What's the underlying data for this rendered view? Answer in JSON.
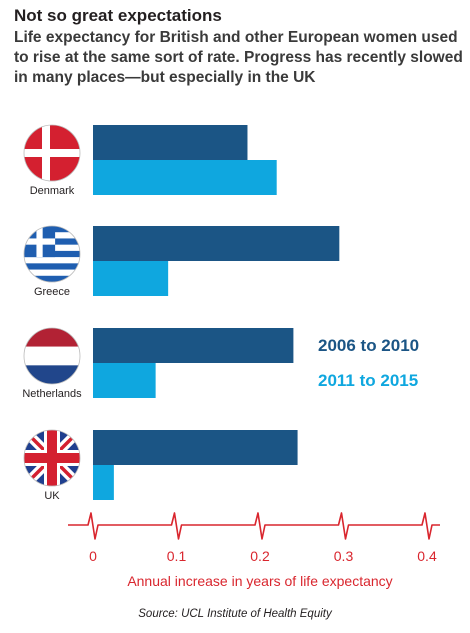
{
  "title": "Not so great expectations",
  "subtitle": "Life expectancy for British and other European women used to rise at the same sort of rate. Progress has recently slowed in many places—but especially in the UK",
  "source": "Source: UCL Institute of Health Equity",
  "chart_data": {
    "type": "bar",
    "orientation": "horizontal",
    "categories": [
      "Denmark",
      "Greece",
      "Netherlands",
      "UK"
    ],
    "series": [
      {
        "name": "2006 to 2010",
        "color": "#1b5585",
        "values": [
          0.185,
          0.295,
          0.24,
          0.245
        ]
      },
      {
        "name": "2011 to 2015",
        "color": "#0fa7df",
        "values": [
          0.22,
          0.09,
          0.075,
          0.025
        ]
      }
    ],
    "xlabel": "Annual increase in years of life expectancy",
    "xlim": [
      0,
      0.4
    ],
    "xticks": [
      "0",
      "0.1",
      "0.2",
      "0.3",
      "0.4"
    ],
    "flags": [
      "denmark-flag-icon",
      "greece-flag-icon",
      "netherlands-flag-icon",
      "uk-flag-icon"
    ],
    "legend_position": "right",
    "axis_color": "#d9262e"
  }
}
